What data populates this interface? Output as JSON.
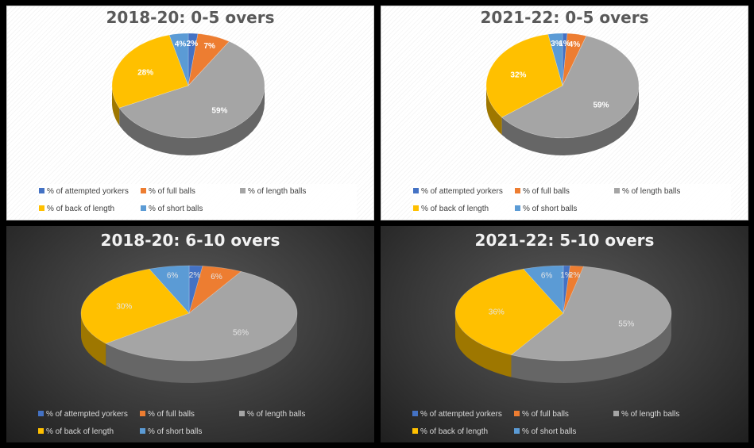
{
  "legend_labels": [
    "% of attempted yorkers",
    "% of full balls",
    "% of length balls",
    "% of back of length",
    "% of short balls"
  ],
  "colors": {
    "attempted_yorkers": "#4472C4",
    "full_balls": "#ED7D31",
    "length_balls": "#A5A5A5",
    "back_of_length": "#FFC000",
    "short_balls": "#5B9BD5"
  },
  "chart_data": [
    {
      "type": "pie",
      "title": "2018-20: 0-5 overs",
      "theme": "light",
      "categories": [
        "% of attempted yorkers",
        "% of full balls",
        "% of length balls",
        "% of back of length",
        "% of short balls"
      ],
      "values": [
        2,
        7,
        59,
        28,
        4
      ],
      "data_labels": [
        "2%",
        "7%",
        "59%",
        "28%",
        "4%"
      ],
      "legend_position": "bottom"
    },
    {
      "type": "pie",
      "title": "2021-22: 0-5 overs",
      "theme": "light",
      "categories": [
        "% of attempted yorkers",
        "% of full balls",
        "% of length balls",
        "% of back of length",
        "% of short balls"
      ],
      "values": [
        1,
        4,
        59,
        32,
        3
      ],
      "data_labels": [
        "1%",
        "4%",
        "59%",
        "32%",
        "3%"
      ],
      "legend_position": "bottom"
    },
    {
      "type": "pie",
      "title": "2018-20: 6-10 overs",
      "theme": "dark",
      "categories": [
        "% of attempted yorkers",
        "% of full balls",
        "% of length balls",
        "% of back of length",
        "% of short balls"
      ],
      "values": [
        2,
        6,
        56,
        30,
        6
      ],
      "data_labels": [
        "2%",
        "6%",
        "56%",
        "30%",
        "6%"
      ],
      "legend_position": "bottom"
    },
    {
      "type": "pie",
      "title": "2021-22: 5-10 overs",
      "theme": "dark",
      "categories": [
        "% of attempted yorkers",
        "% of full balls",
        "% of length balls",
        "% of back of length",
        "% of short balls"
      ],
      "values": [
        1,
        2,
        55,
        36,
        6
      ],
      "data_labels": [
        "1%",
        "2%",
        "55%",
        "36%",
        "6%"
      ],
      "legend_position": "bottom"
    }
  ]
}
